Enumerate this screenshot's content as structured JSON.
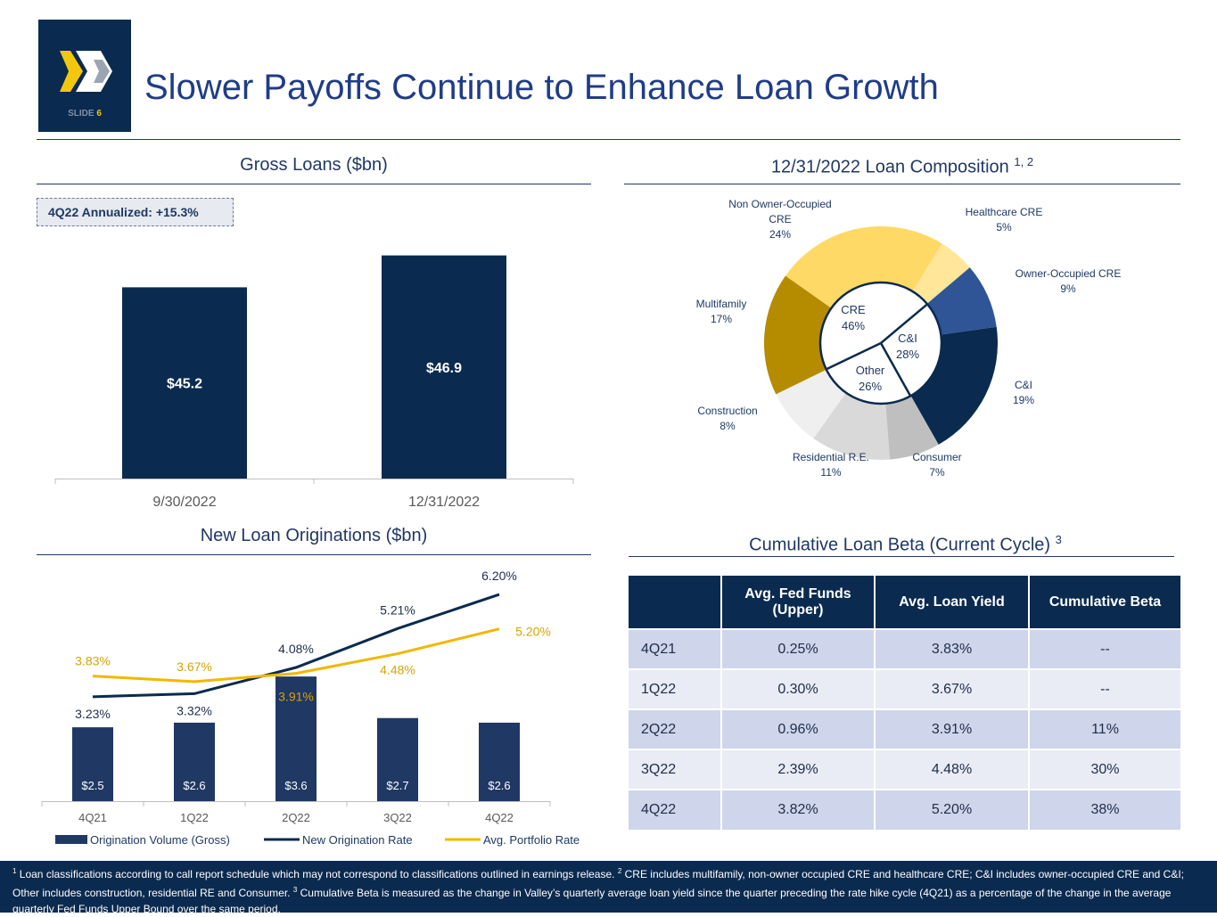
{
  "header": {
    "title": "Slower Payoffs Continue to Enhance Loan Growth",
    "slide_label": "SLIDE",
    "slide_number": "6"
  },
  "colors": {
    "navy": "#0b2a4f",
    "gold": "#f2b700",
    "bar": "#1f3864"
  },
  "gross_loans": {
    "title": "Gross Loans ($bn)",
    "callout": "4Q22 Annualized: +15.3%"
  },
  "composition": {
    "title": "12/31/2022 Loan Composition",
    "title_sup": "1, 2"
  },
  "originations": {
    "title": "New Loan Originations ($bn)"
  },
  "beta": {
    "title": "Cumulative Loan Beta (Current Cycle)",
    "title_sup": "3",
    "headers": [
      "",
      "Avg. Fed Funds (Upper)",
      "Avg. Loan Yield",
      "Cumulative Beta"
    ],
    "rows": [
      [
        "4Q21",
        "0.25%",
        "3.83%",
        "--"
      ],
      [
        "1Q22",
        "0.30%",
        "3.67%",
        "--"
      ],
      [
        "2Q22",
        "0.96%",
        "3.91%",
        "11%"
      ],
      [
        "3Q22",
        "2.39%",
        "4.48%",
        "30%"
      ],
      [
        "4Q22",
        "3.82%",
        "5.20%",
        "38%"
      ]
    ]
  },
  "chart_data": [
    {
      "type": "bar",
      "title": "Gross Loans ($bn)",
      "categories": [
        "9/30/2022",
        "12/31/2022"
      ],
      "values": [
        45.2,
        46.9
      ],
      "data_labels": [
        "$45.2",
        "$46.9"
      ],
      "ylim": [
        35,
        47.5
      ],
      "color": "#0b2a4f",
      "grid": false
    },
    {
      "type": "bar+line",
      "title": "New Loan Originations ($bn)",
      "categories": [
        "4Q21",
        "1Q22",
        "2Q22",
        "3Q22",
        "4Q22"
      ],
      "series": [
        {
          "name": "Origination Volume (Gross)",
          "type": "bar",
          "values": [
            2.5,
            2.6,
            3.6,
            2.7,
            2.6
          ],
          "data_labels": [
            "$2.5",
            "$2.6",
            "$3.6",
            "$2.7",
            "$2.6"
          ],
          "color": "#1f3864"
        },
        {
          "name": "New Origination Rate",
          "type": "line",
          "values": [
            3.23,
            3.32,
            4.08,
            5.21,
            6.2
          ],
          "data_labels": [
            "3.23%",
            "3.32%",
            "4.08%",
            "5.21%",
            "6.20%"
          ],
          "color": "#0b2a4f"
        },
        {
          "name": "Avg. Portfolio Rate",
          "type": "line",
          "values": [
            3.83,
            3.67,
            3.91,
            4.48,
            5.2
          ],
          "data_labels": [
            "3.83%",
            "3.67%",
            "3.91%",
            "4.48%",
            "5.20%"
          ],
          "color": "#f2b700"
        }
      ],
      "ylim": [
        0.9,
        5.9
      ],
      "y2lim": [
        0.2,
        6.9
      ],
      "legend": "bottom",
      "grid": false
    },
    {
      "type": "pie",
      "subtype": "nested-donut",
      "title": "12/31/2022 Loan Composition",
      "outer": [
        {
          "label": "C&I",
          "value": 19,
          "color": "#0b2a4f"
        },
        {
          "label": "Consumer",
          "value": 7,
          "color": "#bfbfbf"
        },
        {
          "label": "Residential R.E.",
          "value": 11,
          "color": "#d9d9d9"
        },
        {
          "label": "Construction",
          "value": 8,
          "color": "#efefef"
        },
        {
          "label": "Multifamily",
          "value": 17,
          "color": "#b58b00"
        },
        {
          "label": "Non Owner-Occupied CRE",
          "value": 24,
          "color": "#ffd966"
        },
        {
          "label": "Healthcare CRE",
          "value": 5,
          "color": "#ffe699"
        },
        {
          "label": "Owner-Occupied CRE",
          "value": 9,
          "color": "#2f5597"
        }
      ],
      "inner": [
        {
          "label": "C&I",
          "value": 28
        },
        {
          "label": "Other",
          "value": 26
        },
        {
          "label": "CRE",
          "value": 46
        }
      ]
    }
  ],
  "footer": {
    "n1": "1",
    "t1": " Loan classifications according to call report schedule which may not correspond to classifications outlined in earnings release. ",
    "n2": "2",
    "t2": " CRE includes multifamily, non-owner occupied CRE and healthcare CRE; C&I includes owner-occupied CRE and C&I; Other includes construction, residential RE and Consumer.  ",
    "n3": "3",
    "t3": " Cumulative Beta is measured as the change in Valley’s quarterly average loan yield since the quarter preceding the rate hike cycle (4Q21) as a percentage of the change in the average quarterly Fed Funds Upper Bound over the same period."
  }
}
